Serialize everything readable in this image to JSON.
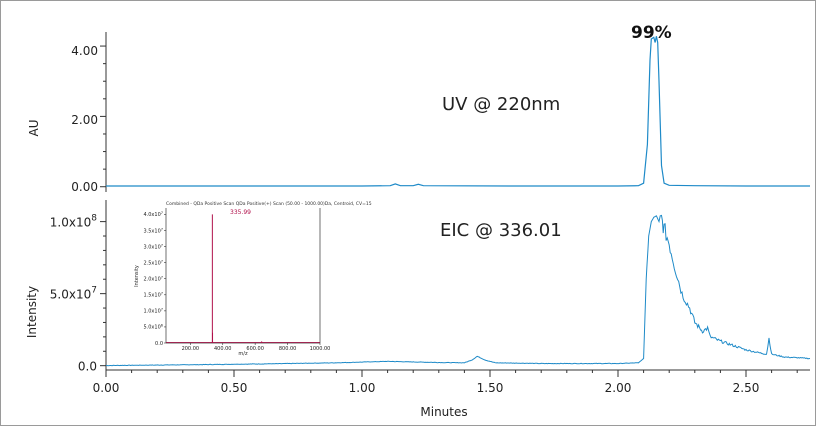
{
  "chart_data": [
    {
      "type": "line",
      "panel": "uv",
      "annotation": "UV @ 220nm",
      "purity_label": "99%",
      "ylabel": "AU",
      "y_ticks": [
        "0.00",
        "2.00",
        "4.00"
      ],
      "ylim": [
        -0.15,
        4.4
      ],
      "xlim": [
        0.0,
        2.75
      ],
      "grid": false,
      "color": "#1e8ac8",
      "series": [
        {
          "x": [
            0.0,
            0.5,
            1.0,
            1.11,
            1.13,
            1.15,
            1.2,
            1.22,
            1.24,
            1.6,
            2.0,
            2.08,
            2.1,
            2.115,
            2.125,
            2.13,
            2.14,
            2.145,
            2.15,
            2.155,
            2.16,
            2.17,
            2.18,
            2.2,
            2.3,
            2.5,
            2.75
          ],
          "y": [
            0.02,
            0.02,
            0.02,
            0.03,
            0.08,
            0.03,
            0.03,
            0.07,
            0.03,
            0.02,
            0.02,
            0.03,
            0.1,
            1.2,
            3.6,
            4.2,
            4.25,
            4.1,
            4.28,
            4.1,
            3.0,
            0.6,
            0.1,
            0.04,
            0.03,
            0.02,
            0.02
          ]
        }
      ]
    },
    {
      "type": "line",
      "panel": "eic",
      "annotation": "EIC @ 336.01",
      "ylabel": "Intensity",
      "xlabel": "Minutes",
      "y_ticks": [
        "0.0",
        "5.0x10",
        "1.0x10"
      ],
      "y_tick_values": [
        0,
        50000000,
        100000000
      ],
      "y_tick_exponents": [
        "",
        "7",
        "8"
      ],
      "x_ticks": [
        "0.00",
        "0.50",
        "1.00",
        "1.50",
        "2.00",
        "2.50"
      ],
      "x_tick_values": [
        0,
        0.5,
        1.0,
        1.5,
        2.0,
        2.5
      ],
      "ylim": [
        -3000000,
        115000000
      ],
      "xlim": [
        0.0,
        2.75
      ],
      "grid": false,
      "color": "#1e8ac8",
      "series": [
        {
          "x": [
            0.0,
            0.3,
            0.6,
            0.9,
            1.1,
            1.3,
            1.4,
            1.43,
            1.45,
            1.48,
            1.52,
            1.7,
            2.0,
            2.08,
            2.1,
            2.11,
            2.12,
            2.13,
            2.14,
            2.15,
            2.16,
            2.17,
            2.18,
            2.2,
            2.22,
            2.25,
            2.28,
            2.3,
            2.33,
            2.35,
            2.36,
            2.4,
            2.45,
            2.5,
            2.55,
            2.58,
            2.59,
            2.6,
            2.65,
            2.7,
            2.75
          ],
          "y": [
            100000,
            600000,
            1200000,
            2000000,
            3000000,
            2200000,
            2000000,
            4000000,
            6500000,
            4000000,
            2000000,
            1500000,
            1500000,
            2000000,
            5000000,
            60000000,
            90000000,
            100000000,
            103000000,
            104000000,
            100000000,
            102000000,
            95000000,
            85000000,
            70000000,
            50000000,
            40000000,
            30000000,
            24000000,
            26000000,
            20000000,
            17000000,
            14000000,
            11000000,
            9000000,
            8000000,
            19000000,
            8000000,
            6000000,
            5500000,
            5000000
          ]
        }
      ]
    },
    {
      "type": "line",
      "panel": "inset_mass_spectrum",
      "title": "Combined - QDa Positive Scan QDa Positive(+) Scan (50.00 - 1000.00)Da, Centroid, CV=15",
      "peak_label": "335.99",
      "xlabel": "m/z",
      "ylabel": "Intensity",
      "x_ticks": [
        "200.00",
        "400.00",
        "600.00",
        "800.00",
        "1000.00"
      ],
      "y_ticks": [
        "0.0",
        "5.0x10",
        "1.0x10",
        "1.5x10",
        "2.0x10",
        "2.5x10",
        "3.0x10",
        "3.5x10",
        "4.0x10"
      ],
      "y_tick_exponents": [
        "",
        "6",
        "7",
        "7",
        "7",
        "7",
        "7",
        "7",
        "7"
      ],
      "xlim": [
        50,
        1000
      ],
      "ylim": [
        0,
        42000000
      ],
      "color": "#b0104a",
      "peaks": [
        {
          "x": 335.99,
          "y": 40000000
        },
        {
          "x": 337.0,
          "y": 3200000
        },
        {
          "x": 640.0,
          "y": 500000
        }
      ]
    }
  ]
}
